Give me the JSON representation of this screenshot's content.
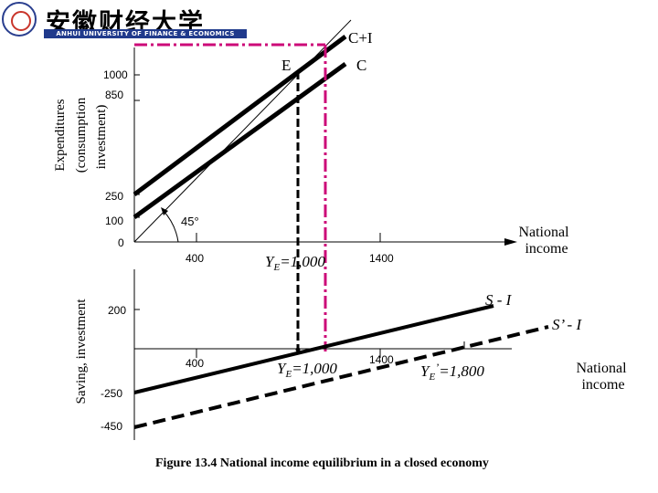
{
  "logo": {
    "name_cn": "安徽财经大学",
    "name_en": "ANHUI UNIVERSITY OF FINANCE & ECONOMICS"
  },
  "top_panel": {
    "y_axis_label_line1": "Expenditures",
    "y_axis_label_line2": "(consumption",
    "y_axis_label_line3": "investment)",
    "y_ticks": [
      "1000",
      "850",
      "250",
      "100",
      "0"
    ],
    "x_ticks": [
      "400",
      "1400"
    ],
    "x_axis_label_line1": "National",
    "x_axis_label_line2": "income",
    "line_c_plus_i": "C+I",
    "line_c": "C",
    "point_e": "E",
    "angle_label": "45°",
    "equilibrium_label": "YE=1,000",
    "equilibrium_base": "Y",
    "equilibrium_sub": "E",
    "equilibrium_value": "=1,000"
  },
  "bottom_panel": {
    "y_axis_label": "Saving, investment",
    "y_ticks": [
      "200",
      "-250",
      "-450"
    ],
    "x_ticks": [
      "400",
      "1400"
    ],
    "line_s_minus_i": "S - I",
    "line_s_prime_minus_i": "S’ - I",
    "x_axis_label_line1": "National",
    "x_axis_label_line2": "income",
    "equilibrium_base": "Y",
    "equilibrium_sub": "E",
    "equilibrium_value": "=1,000",
    "new_equilibrium_base": "Y",
    "new_equilibrium_sub": "E",
    "new_equilibrium_prime": "’",
    "new_equilibrium_value": "=1,800"
  },
  "caption": "Figure 13.4 National income equilibrium in a closed economy",
  "colors": {
    "accent": "#cc0a78",
    "line": "#000000"
  }
}
